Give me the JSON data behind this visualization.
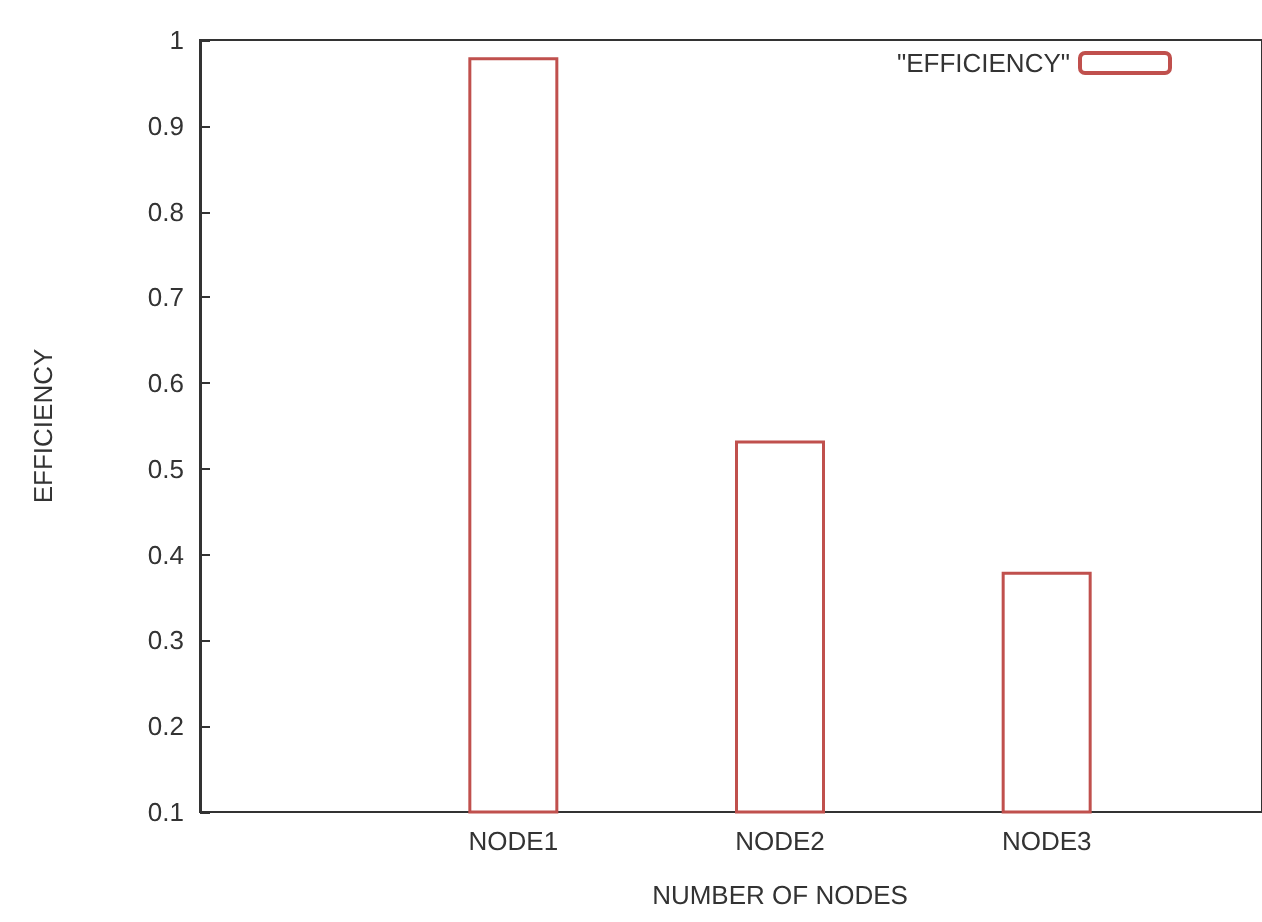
{
  "chart_data": {
    "type": "bar",
    "xlabel": "NUMBER OF NODES",
    "ylabel": "EFFICIENCY",
    "categories": [
      "NODE1",
      "NODE2",
      "NODE3"
    ],
    "series": [
      {
        "name": "\"EFFICIENCY\"",
        "color": "#c0504d",
        "values": [
          0.98,
          0.533,
          0.38
        ]
      }
    ],
    "ylim": [
      0.1,
      1
    ],
    "yticks": [
      0.1,
      0.2,
      0.3,
      0.4,
      0.5,
      0.6,
      0.7,
      0.8,
      0.9,
      1
    ],
    "grid": false,
    "legend": "top right"
  }
}
